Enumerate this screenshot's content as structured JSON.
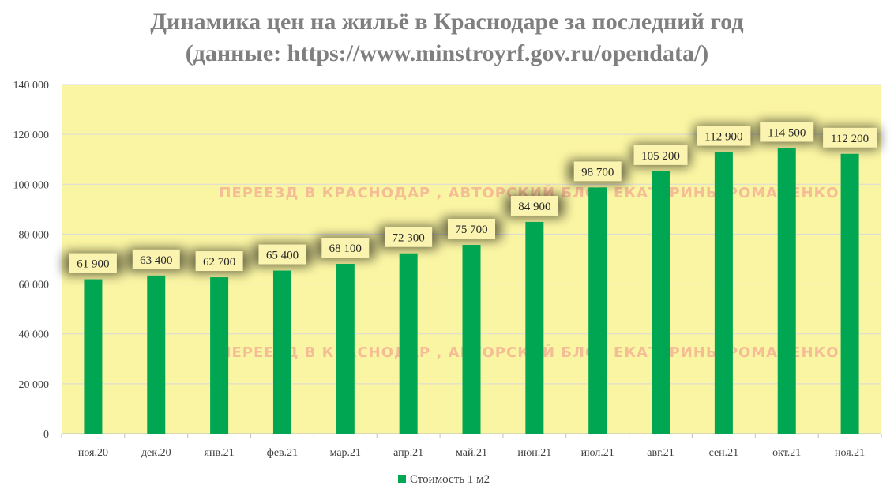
{
  "title_line1": "Динамика цен на жильё в Краснодаре за последний год",
  "title_line2": "(данные: https://www.minstroyrf.gov.ru/opendata/)",
  "watermark": "ПЕРЕЕЗД В КРАСНОДАР , АВТОРСКИЙ БЛОГ ЕКАТЕРИНЫ РОМАНЕНКО",
  "colors": {
    "plot_background": "#faf5a3",
    "bar": "#00a651",
    "grid": "#d9d9d9",
    "title": "#7f7f7f",
    "data_label_box": "#fbf4b0"
  },
  "chart_data": {
    "type": "bar",
    "title": "Динамика цен на жильё в Краснодаре за последний год (данные: https://www.minstroyrf.gov.ru/opendata/)",
    "categories": [
      "ноя.20",
      "дек.20",
      "янв.21",
      "фев.21",
      "мар.21",
      "апр.21",
      "май.21",
      "июн.21",
      "июл.21",
      "авг.21",
      "сен.21",
      "окт.21",
      "ноя.21"
    ],
    "series": [
      {
        "name": "Стоимость 1 м2",
        "values": [
          61900,
          63400,
          62700,
          65400,
          68100,
          72300,
          75700,
          84900,
          98700,
          105200,
          112900,
          114500,
          112200
        ],
        "labels": [
          "61 900",
          "63 400",
          "62 700",
          "65 400",
          "68 100",
          "72 300",
          "75 700",
          "84 900",
          "98 700",
          "105 200",
          "112 900",
          "114 500",
          "112 200"
        ]
      }
    ],
    "ylim": [
      0,
      140000
    ],
    "yticks": [
      0,
      20000,
      40000,
      60000,
      80000,
      100000,
      120000,
      140000
    ],
    "ytick_labels": [
      "0",
      "20 000",
      "40 000",
      "60 000",
      "80 000",
      "100 000",
      "120 000",
      "140 000"
    ],
    "xlabel": "",
    "ylabel": "",
    "grid": true,
    "legend": "bottom"
  }
}
